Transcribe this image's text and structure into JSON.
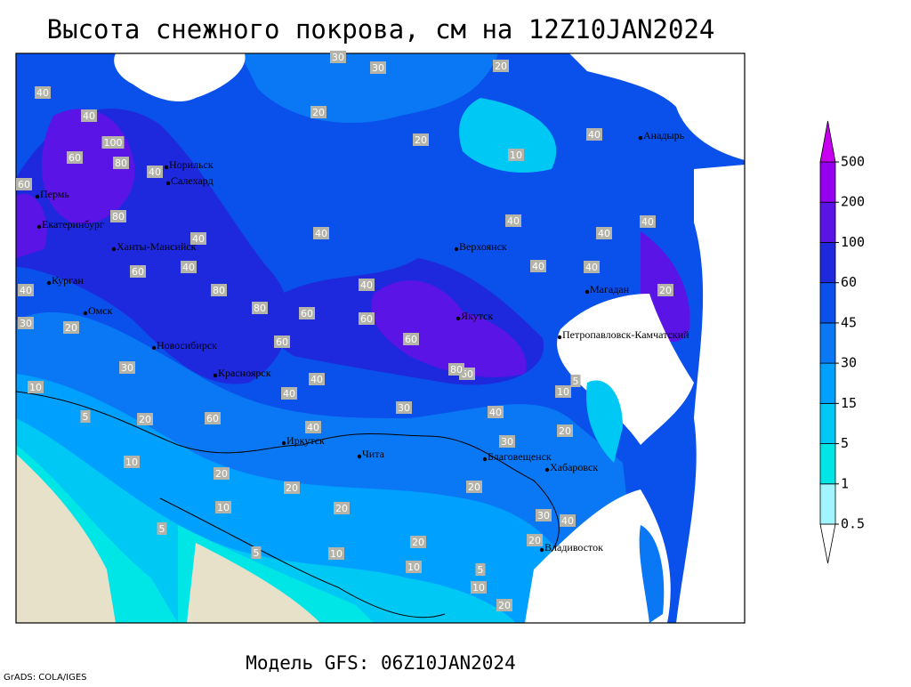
{
  "title": "Высота снежного покрова, см на 12Z10JAN2024",
  "subtitle": "Модель GFS: 06Z10JAN2024",
  "credit": "GrADS: COLA/IGES",
  "legend": {
    "levels": [
      0.5,
      1,
      5,
      15,
      30,
      45,
      60,
      100,
      200,
      500
    ],
    "colors": [
      "#ffffff",
      "#a0f5ff",
      "#00e6e6",
      "#00c8f5",
      "#00a0ff",
      "#0a78f5",
      "#0a50eb",
      "#1e28dc",
      "#5a14e6",
      "#9600f0",
      "#c800f0"
    ]
  },
  "cities": [
    "Анадырь",
    "Норильск",
    "Салехард",
    "Пермь",
    "Екатеринбург",
    "Ханты-Мансийск",
    "Верхоянск",
    "Магадан",
    "Курган",
    "Омск",
    "Якутск",
    "Петропавловск-Камчатский",
    "Новосибирск",
    "Красноярск",
    "Иркутск",
    "Чита",
    "Благовещенск",
    "Хабаровск",
    "Владивосток"
  ],
  "contour_labels": [
    40,
    40,
    100,
    60,
    80,
    40,
    60,
    80,
    40,
    60,
    40,
    40,
    80,
    80,
    60,
    60,
    40,
    40,
    40,
    40,
    40,
    40,
    20,
    20,
    10,
    30,
    30,
    20,
    40,
    60,
    80,
    60,
    60,
    40,
    40,
    40,
    30,
    20,
    20,
    20,
    20,
    10,
    20,
    10,
    10,
    5,
    10,
    20,
    30,
    40,
    20,
    10,
    30,
    20,
    30,
    5,
    5,
    40,
    20,
    5,
    10,
    20,
    30,
    40,
    20,
    10,
    5,
    60
  ]
}
